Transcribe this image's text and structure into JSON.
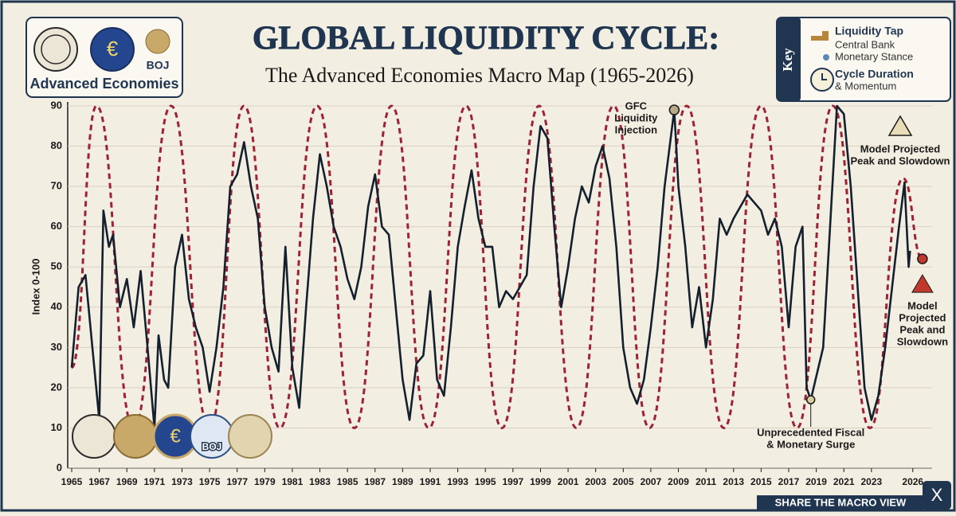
{
  "header": {
    "title": "GLOBAL LIQUIDITY CYCLE:",
    "subtitle": "The Advanced Economies Macro Map (1965-2026)"
  },
  "badge": {
    "label": "Advanced Economies",
    "boj": "BOJ"
  },
  "key": {
    "title": "Key",
    "items": [
      {
        "title": "Liquidity Tap",
        "lines": [
          "Central Bank",
          "Monetary Stance"
        ]
      },
      {
        "title": "Cycle Duration",
        "lines": [
          "& Momentum"
        ]
      }
    ]
  },
  "footer": {
    "share": "SHARE THE MACRO VIEW",
    "logo": "X"
  },
  "chart_data": {
    "type": "line",
    "y_label": "Index 0-100",
    "xlim": [
      1965,
      2027.4
    ],
    "ylim": [
      0,
      90
    ],
    "xticks": [
      1965,
      1967,
      1969,
      1971,
      1973,
      1975,
      1977,
      1979,
      1981,
      1983,
      1985,
      1987,
      1989,
      1991,
      1993,
      1995,
      1997,
      1999,
      2001,
      2003,
      2005,
      2007,
      2009,
      2011,
      2013,
      2015,
      2017,
      2019,
      2021,
      2023,
      2026
    ],
    "yticks": [
      0,
      10,
      20,
      30,
      40,
      50,
      60,
      70,
      80,
      90
    ],
    "grid": true,
    "series": [
      {
        "color": "#9b2335",
        "style": "dashed",
        "smooth": true,
        "x": [
          1965,
          1966.8,
          1969.5,
          1972.2,
          1975,
          1977.5,
          1980.1,
          1982.8,
          1985.5,
          1988.2,
          1990.9,
          1993.6,
          1996.2,
          1998.9,
          2001.6,
          2004.3,
          2006.9,
          2009.6,
          2012.3,
          2015,
          2017.6,
          2020.2,
          2022.9,
          2025.3,
          2026.7
        ],
        "values": [
          25,
          90,
          10,
          90,
          10,
          90,
          10,
          90,
          10,
          90,
          10,
          90,
          10,
          90,
          10,
          90,
          10,
          90,
          10,
          90,
          10,
          90,
          10,
          72,
          52
        ]
      },
      {
        "color": "#14202e",
        "style": "solid",
        "smooth": false,
        "x": [
          1965,
          1965.5,
          1966,
          1966.5,
          1967,
          1967.3,
          1967.7,
          1968,
          1968.5,
          1969,
          1969.5,
          1970,
          1970.5,
          1971,
          1971.3,
          1971.7,
          1972,
          1972.5,
          1973,
          1973.5,
          1974,
          1974.5,
          1975,
          1975.5,
          1976,
          1976.5,
          1977,
          1977.5,
          1978,
          1978.5,
          1979,
          1979.5,
          1980,
          1980.5,
          1981,
          1981.5,
          1982,
          1982.5,
          1983,
          1983.5,
          1984,
          1984.5,
          1985,
          1985.5,
          1986,
          1986.5,
          1987,
          1987.5,
          1988,
          1988.5,
          1989,
          1989.5,
          1990,
          1990.5,
          1991,
          1991.5,
          1992,
          1992.5,
          1993,
          1993.5,
          1994,
          1994.5,
          1995,
          1995.5,
          1996,
          1996.5,
          1997,
          1997.5,
          1998,
          1998.5,
          1999,
          1999.5,
          2000,
          2000.5,
          2001,
          2001.5,
          2002,
          2002.5,
          2003,
          2003.5,
          2004,
          2004.5,
          2005,
          2005.5,
          2006,
          2006.5,
          2007,
          2007.5,
          2008,
          2008.7,
          2009,
          2009.5,
          2010,
          2010.5,
          2011,
          2011.5,
          2012,
          2012.5,
          2013,
          2013.5,
          2014,
          2014.5,
          2015,
          2015.5,
          2016,
          2016.5,
          2017,
          2017.5,
          2018,
          2018.3,
          2018.6,
          2019.5,
          2020,
          2020.5,
          2021,
          2021.5,
          2022,
          2022.5,
          2023,
          2023.5,
          2024,
          2024.5,
          2025,
          2025.4,
          2025.7,
          2025.8
        ],
        "values": [
          25,
          45,
          48,
          30,
          12,
          64,
          55,
          58,
          40,
          47,
          35,
          49,
          30,
          10,
          33,
          22,
          20,
          50,
          58,
          42,
          35,
          30,
          19,
          30,
          45,
          70,
          73,
          81,
          70,
          62,
          40,
          30,
          24,
          55,
          25,
          15,
          40,
          62,
          78,
          70,
          60,
          55,
          47,
          42,
          50,
          65,
          73,
          60,
          58,
          40,
          22,
          12,
          26,
          28,
          44,
          22,
          18,
          35,
          55,
          65,
          74,
          62,
          55,
          55,
          40,
          44,
          42,
          45,
          48,
          70,
          85,
          82,
          60,
          40,
          50,
          62,
          70,
          66,
          75,
          80,
          72,
          55,
          30,
          20,
          16,
          22,
          35,
          50,
          70,
          89,
          70,
          55,
          35,
          45,
          30,
          42,
          62,
          58,
          62,
          65,
          68,
          66,
          64,
          58,
          62,
          55,
          35,
          55,
          60,
          20,
          17,
          30,
          60,
          90,
          88,
          70,
          45,
          20,
          12,
          18,
          30,
          45,
          60,
          71,
          50,
          54
        ]
      }
    ],
    "annotations": [
      {
        "lines": [
          "GFC",
          "Liquidity",
          "Injection"
        ],
        "x": 2008.7,
        "y": 89
      },
      {
        "lines": [
          "Unprecedented Fiscal",
          "& Monetary Surge"
        ],
        "x": 2018.6,
        "y": 17
      },
      {
        "lines": [
          "Model Projected",
          "Peak and Slowdown"
        ]
      },
      {
        "lines": [
          "Model",
          "Projected",
          "Peak and",
          "Slowdown"
        ],
        "x": 2026.7,
        "y": 52
      }
    ]
  }
}
